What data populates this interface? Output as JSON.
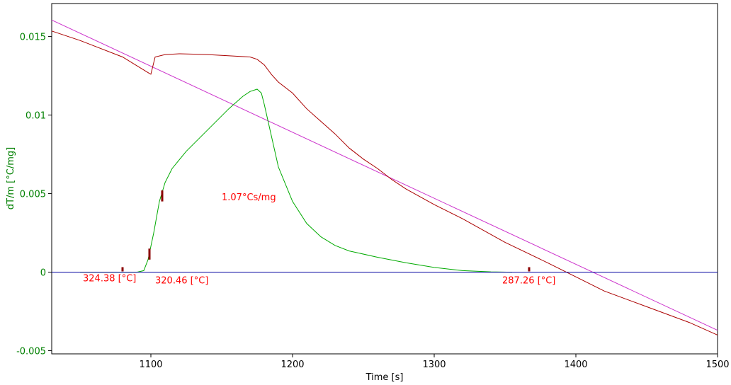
{
  "chart_data": {
    "type": "line",
    "xlabel": "Time [s]",
    "ylabel": "dT/m  [°C/mg]",
    "xlim": [
      1030,
      1500
    ],
    "ylim": [
      -0.0052,
      0.0171
    ],
    "x_ticks": [
      1100,
      1200,
      1300,
      1400,
      1500
    ],
    "y_ticks": [
      -0.005,
      0,
      0.005,
      0.01,
      0.015
    ],
    "y_tick_labels": [
      "-0.005",
      "0",
      "0.005",
      "0.01",
      "0.015"
    ],
    "grid": false,
    "legend": "none",
    "colors": {
      "ylabel": "#008000",
      "ytick": "#008000",
      "annotation": "#ff0000",
      "marker": "#8b0000",
      "baseline": "#0000a0",
      "magenta": "#cc33cc",
      "darkred": "#aa0000",
      "green": "#00aa00"
    },
    "series": [
      {
        "color": "#cc33cc",
        "x": [
          1030,
          1500
        ],
        "y": [
          0.01605,
          -0.0037
        ]
      },
      {
        "color": "#aa0000",
        "x": [
          1030,
          1050,
          1080,
          1099,
          1100,
          1103,
          1110,
          1120,
          1130,
          1140,
          1150,
          1160,
          1170,
          1175,
          1180,
          1185,
          1190,
          1200,
          1210,
          1220,
          1230,
          1240,
          1250,
          1260,
          1270,
          1280,
          1300,
          1320,
          1350,
          1380,
          1400,
          1420,
          1450,
          1480,
          1500
        ],
        "y": [
          0.01535,
          0.01475,
          0.0137,
          0.01265,
          0.0126,
          0.0137,
          0.01385,
          0.0139,
          0.01388,
          0.01385,
          0.0138,
          0.01375,
          0.0137,
          0.01355,
          0.0132,
          0.0126,
          0.0121,
          0.0114,
          0.0104,
          0.0096,
          0.0088,
          0.0079,
          0.0072,
          0.0066,
          0.0059,
          0.0053,
          0.0043,
          0.0034,
          0.0019,
          0.0006,
          -0.0003,
          -0.0012,
          -0.0022,
          -0.0032,
          -0.004
        ]
      },
      {
        "color": "#00aa00",
        "x": [
          1050,
          1080,
          1090,
          1095,
          1098,
          1102,
          1106,
          1110,
          1115,
          1125,
          1135,
          1145,
          1155,
          1165,
          1170,
          1175,
          1178,
          1180,
          1185,
          1190,
          1200,
          1210,
          1220,
          1230,
          1240,
          1260,
          1280,
          1300,
          1320,
          1340,
          1355
        ],
        "y": [
          0.0,
          0.0,
          0.0,
          0.0001,
          0.0008,
          0.0025,
          0.0045,
          0.0057,
          0.0066,
          0.0077,
          0.0086,
          0.0095,
          0.0104,
          0.0112,
          0.0115,
          0.01165,
          0.0114,
          0.0107,
          0.0087,
          0.0067,
          0.0045,
          0.0031,
          0.00225,
          0.0017,
          0.00135,
          0.00095,
          0.0006,
          0.0003,
          0.0001,
          2e-05,
          0.0
        ]
      },
      {
        "color": "#0000a0",
        "x": [
          1030,
          1500
        ],
        "y": [
          0.0,
          0.0
        ]
      }
    ],
    "markers": [
      {
        "x": 1080,
        "y0": 5e-05,
        "y1": 0.00032
      },
      {
        "x": 1099,
        "y0": 0.0008,
        "y1": 0.0015
      },
      {
        "x": 1108,
        "y0": 0.0045,
        "y1": 0.0052
      },
      {
        "x": 1367,
        "y0": 5e-05,
        "y1": 0.00032
      }
    ],
    "annotations": [
      {
        "text": "324.38 [°C]",
        "x": 1052,
        "y": -0.00035
      },
      {
        "text": "320.46 [°C]",
        "x": 1103,
        "y": -0.0005
      },
      {
        "text": "287.26 [°C]",
        "x": 1348,
        "y": -0.0005
      },
      {
        "text": "1.07°Cs/mg",
        "x": 1150,
        "y": 0.0048
      }
    ]
  }
}
